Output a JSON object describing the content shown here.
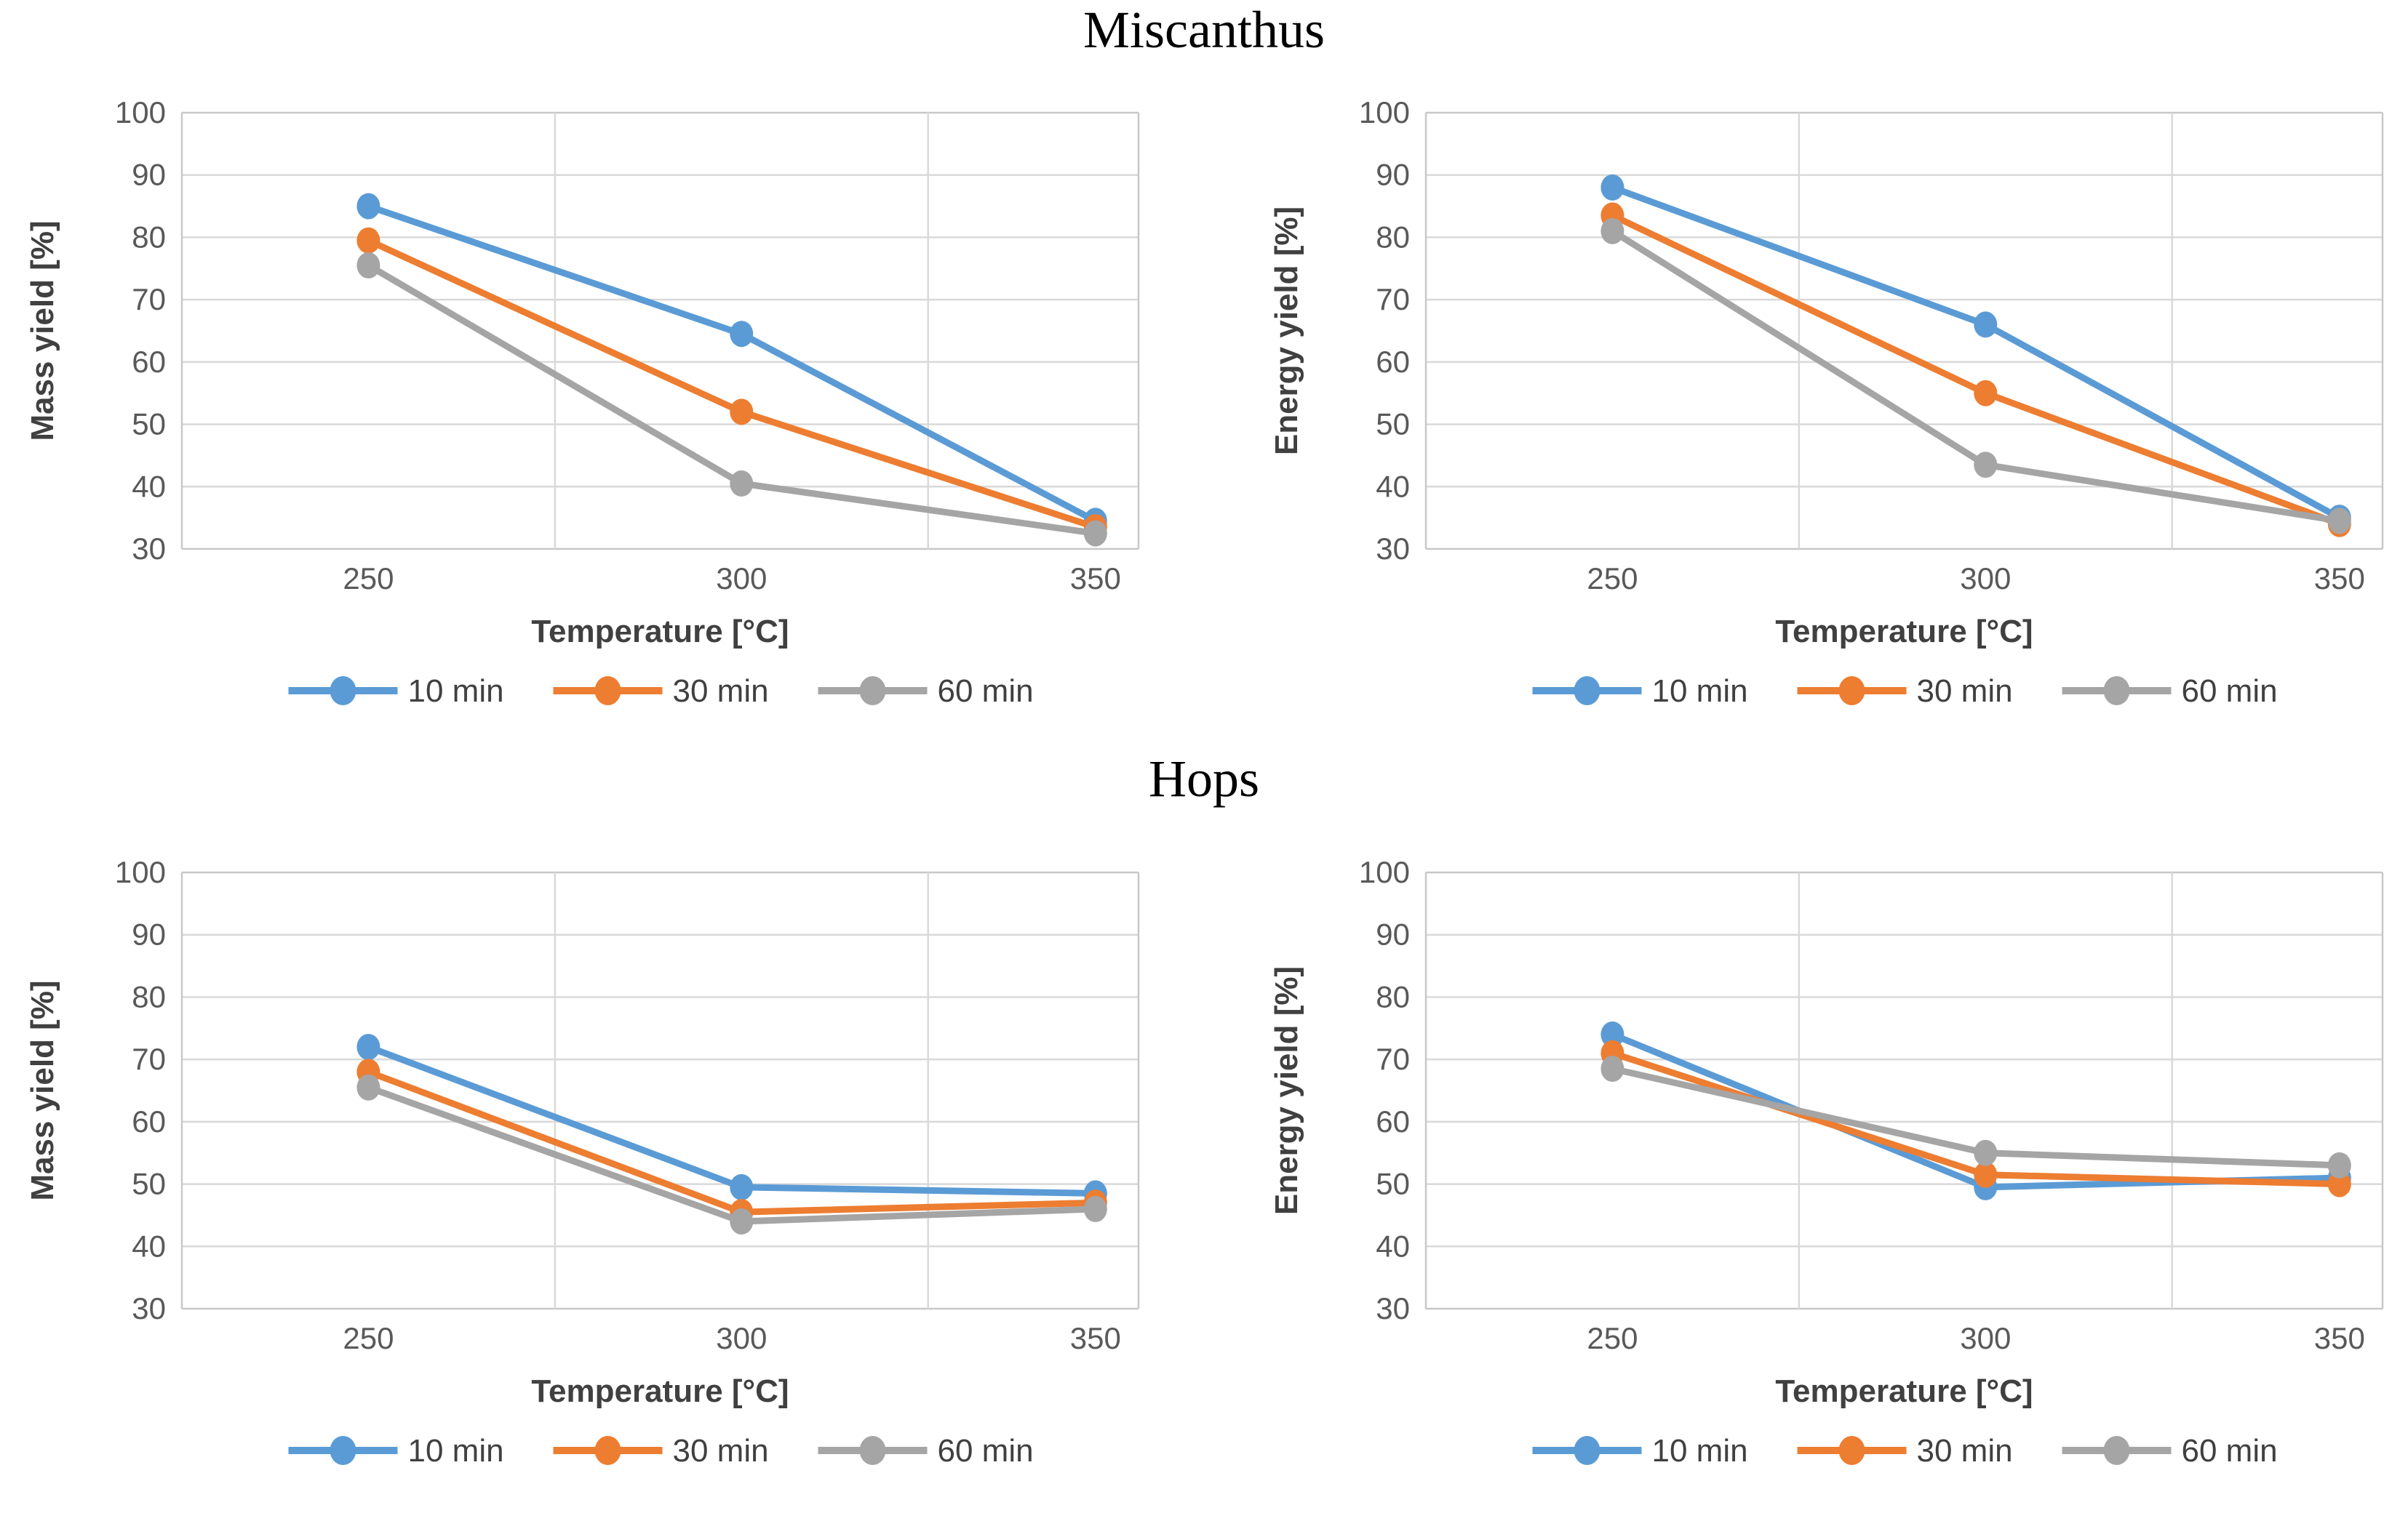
{
  "groups": [
    {
      "title": "Miscanthus"
    },
    {
      "title": "Hops"
    }
  ],
  "palette": {
    "series_blue": "#5B9BD5",
    "series_orange": "#ED7D31",
    "series_gray": "#A5A5A5",
    "tick_label": "#595959",
    "axis_title": "#404040",
    "gridline": "#D9D9D9",
    "plot_border": "#C8C8C8",
    "title_text": "#000000"
  },
  "chart_data": [
    {
      "type": "line",
      "group": "Miscanthus",
      "xlabel": "Temperature [°C]",
      "ylabel": "Mass yield [%]",
      "x": [
        250,
        300,
        350
      ],
      "xticks": [
        "250",
        "300",
        "350"
      ],
      "yticks": [
        "100",
        "90",
        "80",
        "70",
        "60",
        "50",
        "40",
        "30"
      ],
      "ylim": [
        30,
        100
      ],
      "grid": true,
      "legend_position": "bottom",
      "series": [
        {
          "name": "10 min",
          "color": "#5B9BD5",
          "values": [
            85,
            64.5,
            34.5
          ]
        },
        {
          "name": "30 min",
          "color": "#ED7D31",
          "values": [
            79.5,
            52,
            33.5
          ]
        },
        {
          "name": "60 min",
          "color": "#A5A5A5",
          "values": [
            75.5,
            40.5,
            32.5
          ]
        }
      ]
    },
    {
      "type": "line",
      "group": "Miscanthus",
      "xlabel": "Temperature [°C]",
      "ylabel": "Energy yield [%]",
      "x": [
        250,
        300,
        350
      ],
      "xticks": [
        "250",
        "300",
        "350"
      ],
      "yticks": [
        "100",
        "90",
        "80",
        "70",
        "60",
        "50",
        "40",
        "30"
      ],
      "ylim": [
        30,
        100
      ],
      "grid": true,
      "legend_position": "bottom",
      "series": [
        {
          "name": "10 min",
          "color": "#5B9BD5",
          "values": [
            88,
            66,
            35
          ]
        },
        {
          "name": "30 min",
          "color": "#ED7D31",
          "values": [
            83.5,
            55,
            34
          ]
        },
        {
          "name": "60 min",
          "color": "#A5A5A5",
          "values": [
            81,
            43.5,
            34.5
          ]
        }
      ]
    },
    {
      "type": "line",
      "group": "Hops",
      "xlabel": "Temperature [°C]",
      "ylabel": "Mass yield [%]",
      "x": [
        250,
        300,
        350
      ],
      "xticks": [
        "250",
        "300",
        "350"
      ],
      "yticks": [
        "100",
        "90",
        "80",
        "70",
        "60",
        "50",
        "40",
        "30"
      ],
      "ylim": [
        30,
        100
      ],
      "grid": true,
      "legend_position": "bottom",
      "series": [
        {
          "name": "10 min",
          "color": "#5B9BD5",
          "values": [
            72,
            49.5,
            48.5
          ]
        },
        {
          "name": "30 min",
          "color": "#ED7D31",
          "values": [
            68,
            45.5,
            47
          ]
        },
        {
          "name": "60 min",
          "color": "#A5A5A5",
          "values": [
            65.5,
            44,
            46
          ]
        }
      ]
    },
    {
      "type": "line",
      "group": "Hops",
      "xlabel": "Temperature [°C]",
      "ylabel": "Energy yield [%]",
      "x": [
        250,
        300,
        350
      ],
      "xticks": [
        "250",
        "300",
        "350"
      ],
      "yticks": [
        "100",
        "90",
        "80",
        "70",
        "60",
        "50",
        "40",
        "30"
      ],
      "ylim": [
        30,
        100
      ],
      "grid": true,
      "legend_position": "bottom",
      "series": [
        {
          "name": "10 min",
          "color": "#5B9BD5",
          "values": [
            74,
            49.5,
            51
          ]
        },
        {
          "name": "30 min",
          "color": "#ED7D31",
          "values": [
            71,
            51.5,
            50
          ]
        },
        {
          "name": "60 min",
          "color": "#A5A5A5",
          "values": [
            68.5,
            55,
            53
          ]
        }
      ]
    }
  ]
}
